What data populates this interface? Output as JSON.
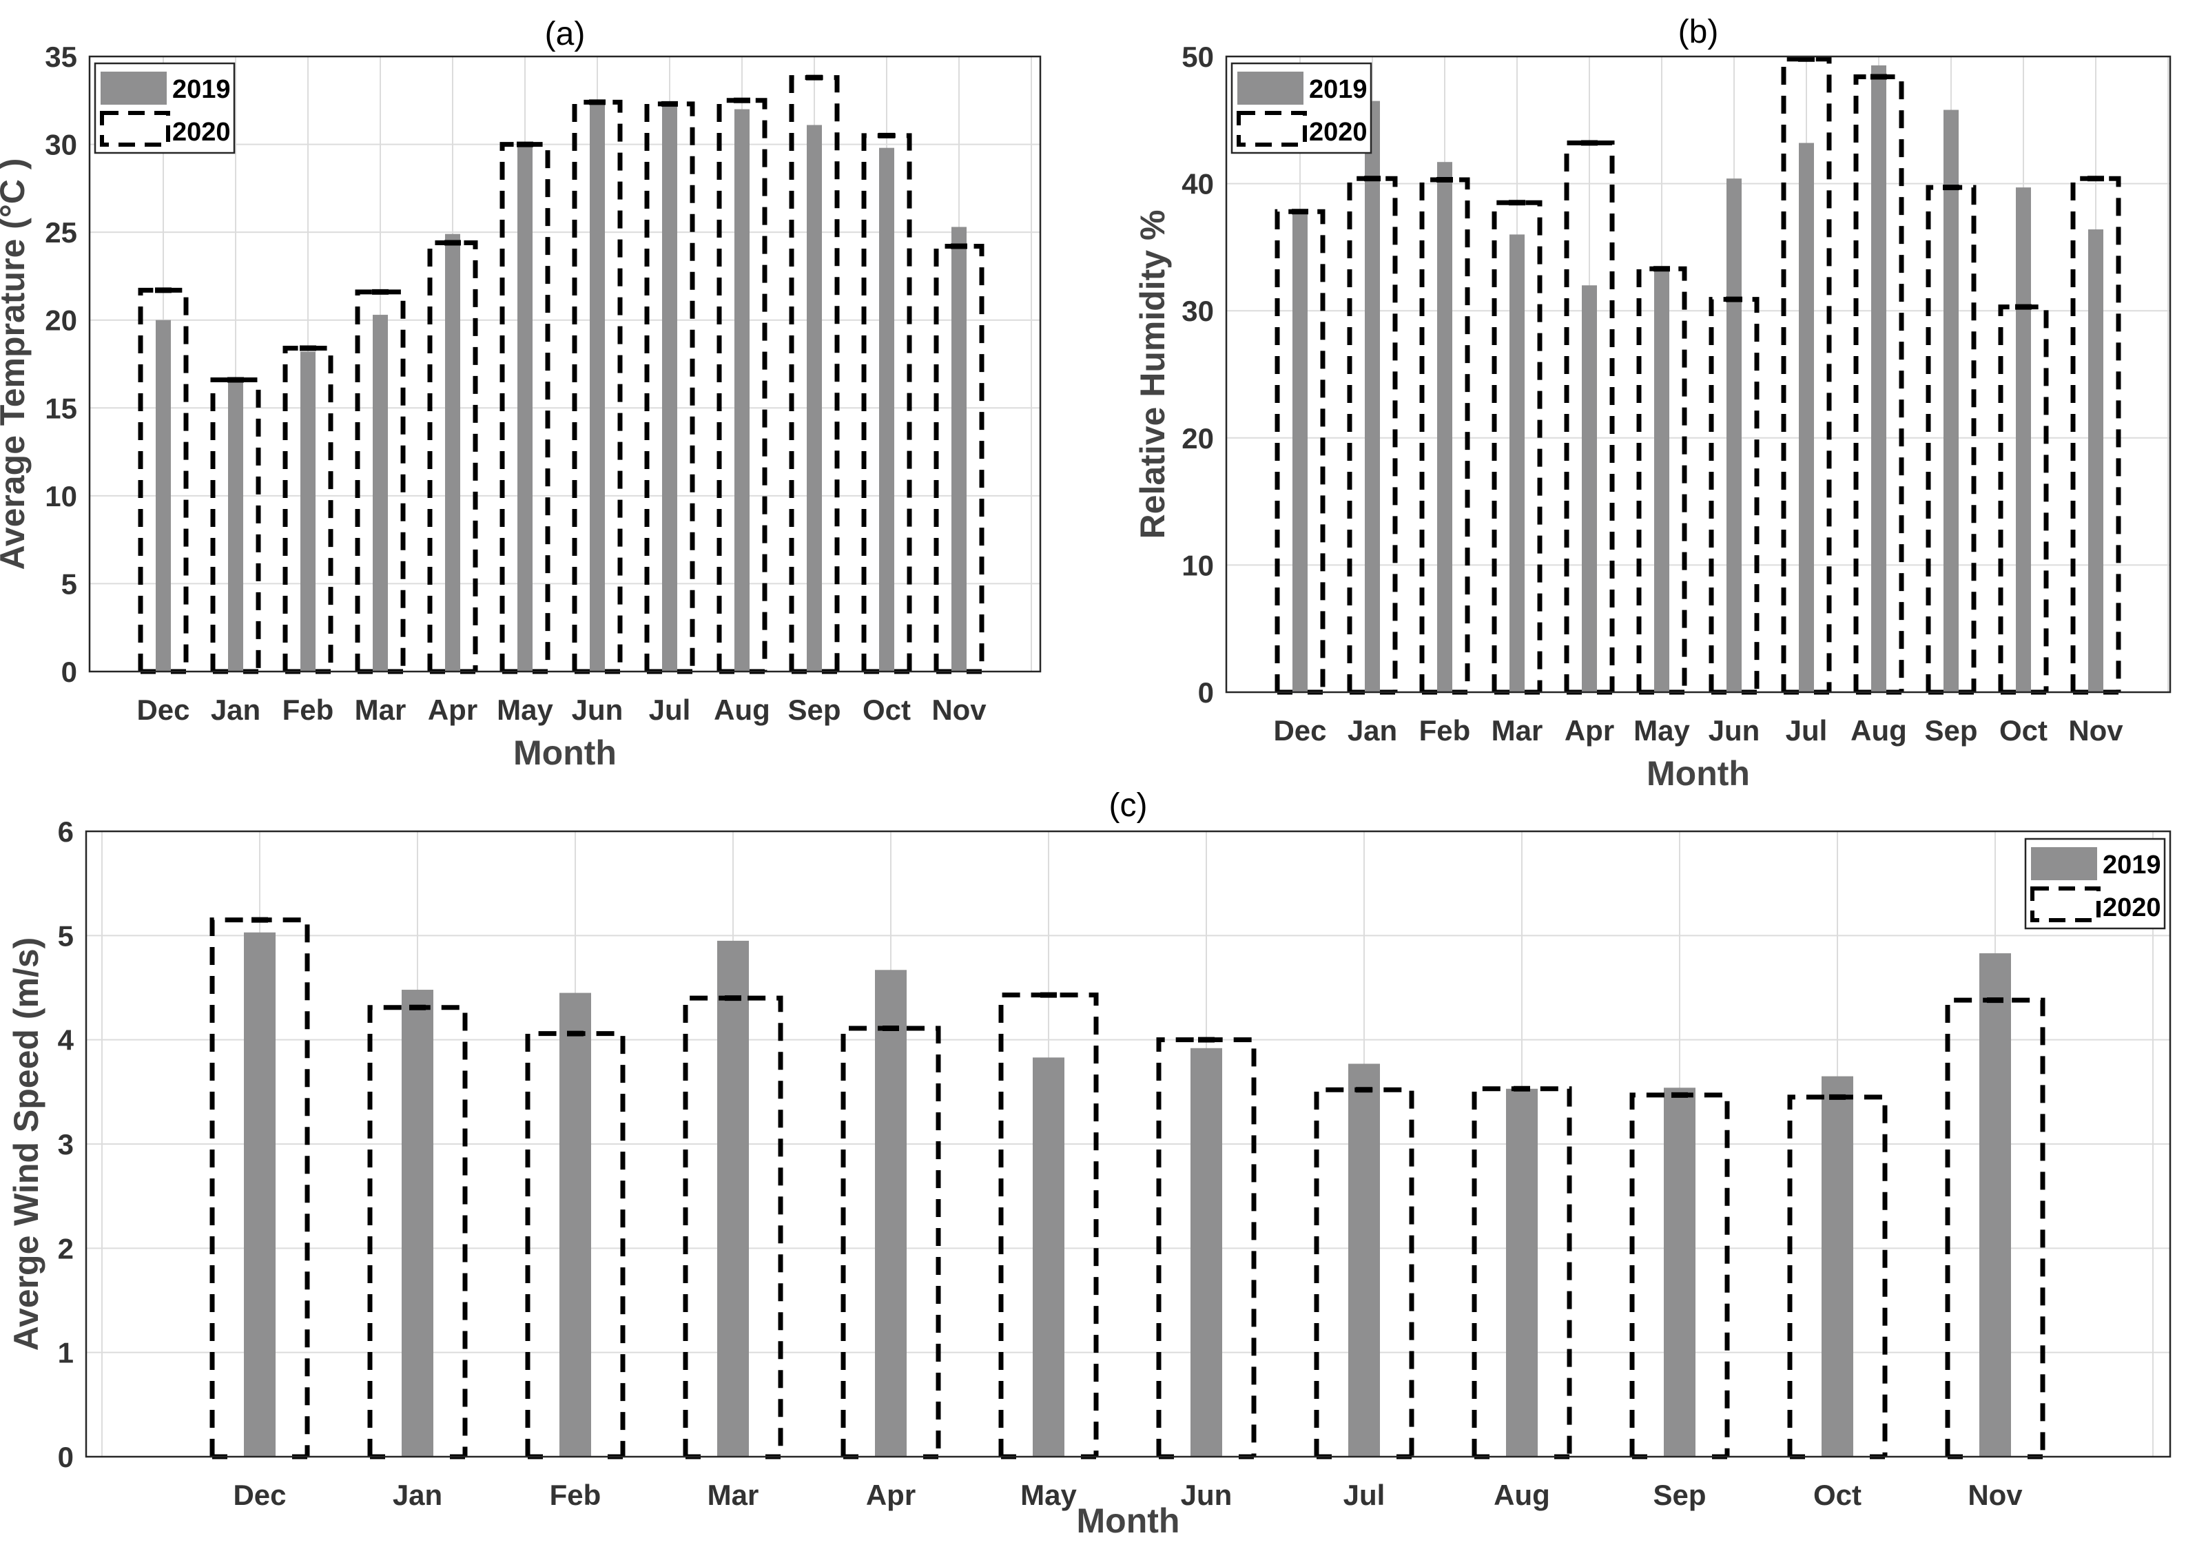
{
  "colors": {
    "bar2019": "#8f8f90",
    "outline2020": "#000000",
    "grid": "#dcdcdc",
    "axis": "#262626"
  },
  "chart_data": [
    {
      "type": "bar",
      "title": "(a)",
      "xlabel": "Month",
      "ylabel": "Average Temprature (°C )",
      "categories": [
        "Dec",
        "Jan",
        "Feb",
        "Mar",
        "Apr",
        "May",
        "Jun",
        "Jul",
        "Aug",
        "Sep",
        "Oct",
        "Nov"
      ],
      "ylim": [
        0,
        35
      ],
      "yticks": [
        0,
        5,
        10,
        15,
        20,
        25,
        30,
        35
      ],
      "grid": true,
      "legend_position": "top-left",
      "series": [
        {
          "name": "2019",
          "style": "filled gray bar",
          "values": [
            20.0,
            16.7,
            18.2,
            20.3,
            24.9,
            30.1,
            32.4,
            32.3,
            32.0,
            31.1,
            29.8,
            25.3
          ]
        },
        {
          "name": "2020",
          "style": "dashed outline bar",
          "values": [
            21.7,
            16.6,
            18.4,
            21.6,
            24.4,
            30.0,
            32.4,
            32.3,
            32.5,
            33.8,
            30.5,
            24.2
          ]
        }
      ]
    },
    {
      "type": "bar",
      "title": "(b)",
      "xlabel": "Month",
      "ylabel": "Relative Humidity %",
      "categories": [
        "Dec",
        "Jan",
        "Feb",
        "Mar",
        "Apr",
        "May",
        "Jun",
        "Jul",
        "Aug",
        "Sep",
        "Oct",
        "Nov"
      ],
      "ylim": [
        0,
        50
      ],
      "yticks": [
        0,
        10,
        20,
        30,
        40,
        50
      ],
      "grid": true,
      "legend_position": "top-left",
      "series": [
        {
          "name": "2019",
          "style": "filled gray bar",
          "values": [
            38.0,
            46.5,
            41.7,
            36.0,
            32.0,
            33.2,
            40.4,
            43.2,
            49.3,
            45.8,
            39.7,
            36.4
          ]
        },
        {
          "name": "2020",
          "style": "dashed outline bar",
          "values": [
            37.8,
            40.4,
            40.3,
            38.5,
            43.2,
            33.3,
            30.9,
            49.8,
            48.4,
            39.7,
            30.3,
            40.4
          ]
        }
      ]
    },
    {
      "type": "bar",
      "title": "(c)",
      "xlabel": "Month",
      "ylabel": "Averge Wind Speed (m/s)",
      "categories": [
        "Dec",
        "Jan",
        "Feb",
        "Mar",
        "Apr",
        "May",
        "Jun",
        "Jul",
        "Aug",
        "Sep",
        "Oct",
        "Nov"
      ],
      "ylim": [
        0,
        6
      ],
      "yticks": [
        0,
        1,
        2,
        3,
        4,
        5,
        6
      ],
      "grid": true,
      "legend_position": "top-right",
      "series": [
        {
          "name": "2019",
          "style": "filled gray bar",
          "values": [
            5.03,
            4.48,
            4.45,
            4.95,
            4.67,
            3.83,
            3.92,
            3.77,
            3.53,
            3.54,
            3.65,
            4.83
          ]
        },
        {
          "name": "2020",
          "style": "dashed outline bar",
          "values": [
            5.15,
            4.31,
            4.06,
            4.4,
            4.11,
            4.43,
            4.0,
            3.52,
            3.53,
            3.47,
            3.45,
            4.38
          ]
        }
      ]
    }
  ]
}
